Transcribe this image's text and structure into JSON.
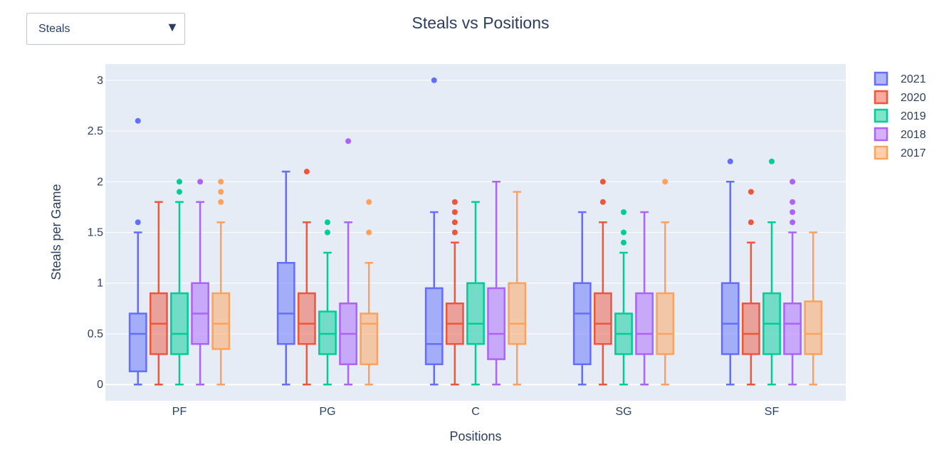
{
  "dropdown": {
    "selected": "Steals",
    "arrow_icon": "triangle-down-icon"
  },
  "chart_data": {
    "type": "box",
    "title": "Steals vs Positions",
    "xlabel": "Positions",
    "ylabel": "Steals per Game",
    "categories": [
      "PF",
      "PG",
      "C",
      "SG",
      "SF"
    ],
    "ylim": [
      -0.16,
      3.16
    ],
    "yticks": [
      0,
      0.5,
      1,
      1.5,
      2,
      2.5,
      3
    ],
    "ytick_labels": [
      "0",
      "0.5",
      "1",
      "1.5",
      "2",
      "2.5",
      "3"
    ],
    "grid": true,
    "legend_position": "top-right",
    "series": [
      {
        "name": "2021",
        "color": "#636efa",
        "boxes": [
          {
            "min": 0,
            "q1": 0.13,
            "median": 0.5,
            "q3": 0.7,
            "max": 1.5,
            "outliers": [
              1.6,
              2.6
            ]
          },
          {
            "min": 0,
            "q1": 0.4,
            "median": 0.7,
            "q3": 1.2,
            "max": 2.1,
            "outliers": []
          },
          {
            "min": 0,
            "q1": 0.2,
            "median": 0.4,
            "q3": 0.95,
            "max": 1.7,
            "outliers": [
              3.0
            ]
          },
          {
            "min": 0,
            "q1": 0.2,
            "median": 0.7,
            "q3": 1.0,
            "max": 1.7,
            "outliers": []
          },
          {
            "min": 0,
            "q1": 0.3,
            "median": 0.6,
            "q3": 1.0,
            "max": 2.0,
            "outliers": [
              2.2
            ]
          }
        ]
      },
      {
        "name": "2020",
        "color": "#ef553b",
        "boxes": [
          {
            "min": 0,
            "q1": 0.3,
            "median": 0.6,
            "q3": 0.9,
            "max": 1.8,
            "outliers": []
          },
          {
            "min": 0,
            "q1": 0.4,
            "median": 0.6,
            "q3": 0.9,
            "max": 1.6,
            "outliers": [
              2.1
            ]
          },
          {
            "min": 0,
            "q1": 0.4,
            "median": 0.6,
            "q3": 0.8,
            "max": 1.4,
            "outliers": [
              1.5,
              1.6,
              1.7,
              1.8
            ]
          },
          {
            "min": 0,
            "q1": 0.4,
            "median": 0.6,
            "q3": 0.9,
            "max": 1.6,
            "outliers": [
              1.8,
              2.0
            ]
          },
          {
            "min": 0,
            "q1": 0.3,
            "median": 0.5,
            "q3": 0.8,
            "max": 1.4,
            "outliers": [
              1.6,
              1.9
            ]
          }
        ]
      },
      {
        "name": "2019",
        "color": "#00cc96",
        "boxes": [
          {
            "min": 0,
            "q1": 0.3,
            "median": 0.5,
            "q3": 0.9,
            "max": 1.8,
            "outliers": [
              1.9,
              2.0
            ]
          },
          {
            "min": 0,
            "q1": 0.3,
            "median": 0.5,
            "q3": 0.72,
            "max": 1.3,
            "outliers": [
              1.5,
              1.6
            ]
          },
          {
            "min": 0,
            "q1": 0.4,
            "median": 0.6,
            "q3": 1.0,
            "max": 1.8,
            "outliers": []
          },
          {
            "min": 0,
            "q1": 0.3,
            "median": 0.5,
            "q3": 0.7,
            "max": 1.3,
            "outliers": [
              1.4,
              1.5,
              1.7
            ]
          },
          {
            "min": 0,
            "q1": 0.3,
            "median": 0.6,
            "q3": 0.9,
            "max": 1.6,
            "outliers": [
              2.2
            ]
          }
        ]
      },
      {
        "name": "2018",
        "color": "#ab63fa",
        "boxes": [
          {
            "min": 0,
            "q1": 0.4,
            "median": 0.7,
            "q3": 1.0,
            "max": 1.8,
            "outliers": [
              2.0
            ]
          },
          {
            "min": 0,
            "q1": 0.2,
            "median": 0.5,
            "q3": 0.8,
            "max": 1.6,
            "outliers": [
              2.4
            ]
          },
          {
            "min": 0,
            "q1": 0.25,
            "median": 0.5,
            "q3": 0.95,
            "max": 2.0,
            "outliers": []
          },
          {
            "min": 0,
            "q1": 0.3,
            "median": 0.5,
            "q3": 0.9,
            "max": 1.7,
            "outliers": []
          },
          {
            "min": 0,
            "q1": 0.3,
            "median": 0.6,
            "q3": 0.8,
            "max": 1.5,
            "outliers": [
              1.6,
              1.7,
              1.8,
              2.0
            ]
          }
        ]
      },
      {
        "name": "2017",
        "color": "#ffa15a",
        "boxes": [
          {
            "min": 0,
            "q1": 0.35,
            "median": 0.6,
            "q3": 0.9,
            "max": 1.6,
            "outliers": [
              1.8,
              1.9,
              2.0
            ]
          },
          {
            "min": 0,
            "q1": 0.2,
            "median": 0.6,
            "q3": 0.7,
            "max": 1.2,
            "outliers": [
              1.5,
              1.8
            ]
          },
          {
            "min": 0,
            "q1": 0.4,
            "median": 0.6,
            "q3": 1.0,
            "max": 1.9,
            "outliers": []
          },
          {
            "min": 0,
            "q1": 0.3,
            "median": 0.5,
            "q3": 0.9,
            "max": 1.6,
            "outliers": [
              2.0
            ]
          },
          {
            "min": 0,
            "q1": 0.3,
            "median": 0.5,
            "q3": 0.82,
            "max": 1.5,
            "outliers": []
          }
        ]
      }
    ]
  }
}
